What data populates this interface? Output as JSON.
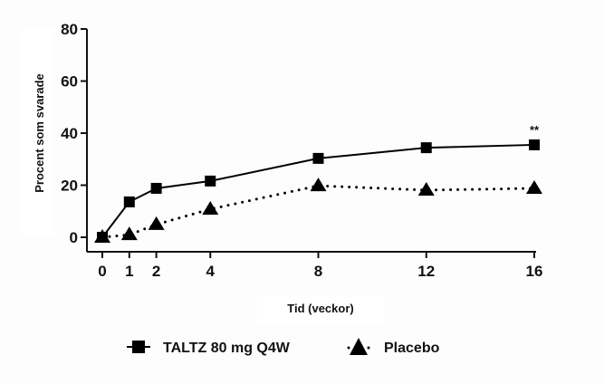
{
  "chart_data": {
    "type": "line",
    "title": "",
    "xlabel": "Tid (veckor)",
    "ylabel": "Procent som svarade",
    "x": [
      0,
      1,
      2,
      4,
      8,
      12,
      16
    ],
    "xticks": [
      "0",
      "1",
      "2",
      "4",
      "8",
      "12",
      "16"
    ],
    "yticks": [
      "0",
      "20",
      "40",
      "60",
      "80"
    ],
    "xlim": [
      0,
      16
    ],
    "ylim": [
      0,
      80
    ],
    "grid": false,
    "legend_position": "bottom",
    "series": [
      {
        "name": "TALTZ 80 mg Q4W",
        "marker": "square",
        "line": "solid",
        "values": [
          0,
          13.6,
          18.8,
          21.6,
          30.3,
          34.4,
          35.5
        ]
      },
      {
        "name": "Placebo",
        "marker": "triangle",
        "line": "dotted",
        "values": [
          0,
          1.0,
          4.9,
          10.8,
          19.8,
          18.1,
          18.8
        ]
      }
    ],
    "annotations": [
      {
        "text": "**",
        "x": 16,
        "series": "TALTZ 80 mg Q4W"
      }
    ]
  }
}
